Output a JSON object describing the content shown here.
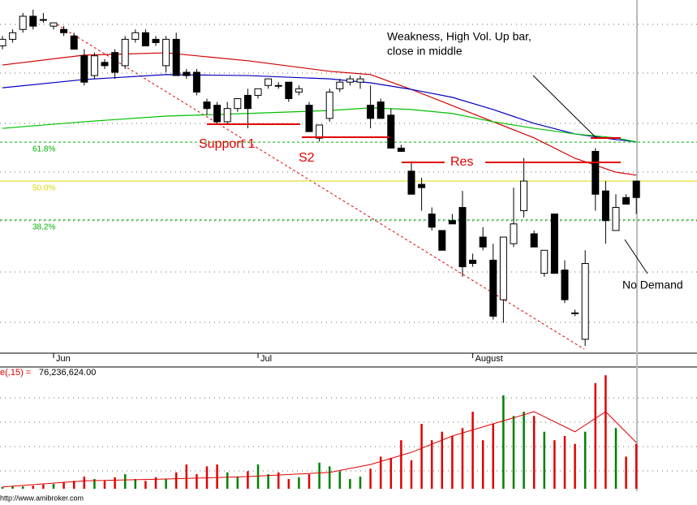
{
  "chart_data": {
    "type": "candlestick",
    "categories": [
      null,
      null,
      null,
      null,
      null,
      "Jun",
      null,
      null,
      null,
      null,
      null,
      null,
      null,
      null,
      null,
      null,
      null,
      null,
      null,
      null,
      null,
      null,
      null,
      null,
      null,
      "Jul",
      null,
      null,
      null,
      null,
      null,
      null,
      null,
      null,
      null,
      null,
      null,
      null,
      null,
      null,
      null,
      null,
      null,
      null,
      null,
      null,
      "August",
      null,
      null,
      null,
      null,
      null,
      null,
      null,
      null,
      null,
      null,
      null,
      null,
      null,
      null,
      null,
      null
    ],
    "ylim": [
      0,
      100
    ],
    "up_color": "#ffffff",
    "down_color": "#000000",
    "open": [
      91,
      93,
      96,
      100,
      99,
      97,
      96,
      94,
      88,
      82,
      86,
      89,
      85,
      93,
      95,
      93,
      85,
      93,
      83,
      83,
      74,
      73,
      68,
      72,
      76,
      76,
      79,
      79,
      80,
      77,
      73,
      63,
      69,
      78,
      80,
      80,
      73,
      74,
      70,
      60,
      53,
      49,
      40,
      35,
      38,
      42,
      26,
      33,
      26,
      14,
      31,
      41,
      34,
      22,
      40,
      23,
      10,
      2,
      59,
      47,
      35,
      45,
      50
    ],
    "high": [
      94,
      96,
      101,
      102,
      101,
      98,
      97,
      95,
      90,
      89,
      87,
      90,
      94,
      96,
      96,
      94,
      94,
      95,
      84,
      84,
      75,
      74,
      74,
      75,
      78,
      78,
      81,
      80,
      80,
      79,
      74,
      67,
      78,
      81,
      82,
      82,
      79,
      75,
      72,
      61,
      56,
      51,
      42,
      35,
      40,
      47,
      28,
      36,
      31,
      33,
      48,
      57,
      35,
      29,
      40,
      26,
      11,
      29,
      60,
      50,
      46,
      46,
      50
    ],
    "low": [
      90,
      92,
      95,
      96,
      98,
      96,
      94,
      90,
      79,
      81,
      84,
      81,
      84,
      92,
      91,
      91,
      83,
      82,
      81,
      76,
      70,
      67,
      67,
      71,
      66,
      75,
      78,
      78,
      74,
      76,
      65,
      62,
      68,
      77,
      79,
      78,
      66,
      69,
      60,
      59,
      46,
      41,
      35,
      29,
      37,
      21,
      24,
      29,
      8,
      7,
      30,
      39,
      30,
      21,
      22,
      13,
      9,
      0,
      41,
      31,
      35,
      43,
      40
    ],
    "close": [
      93,
      95,
      100,
      97,
      99,
      98,
      95,
      90,
      80,
      88,
      85,
      83,
      93,
      95,
      91,
      92,
      93,
      82,
      82,
      77,
      72,
      68,
      72,
      75,
      72,
      78,
      81,
      79,
      75,
      78,
      65,
      67,
      77,
      80,
      81,
      81,
      69,
      69,
      60,
      59,
      46,
      48,
      36,
      29,
      37,
      24,
      25,
      30,
      9,
      33,
      37,
      50,
      30,
      29,
      22,
      14,
      10,
      25,
      46,
      38,
      42,
      43,
      45
    ],
    "moving_averages": [
      {
        "color": "#d00000",
        "x": [
          0,
          8,
          16,
          24,
          32,
          36,
          40,
          44,
          48,
          52,
          56,
          60,
          62
        ],
        "values": [
          85.2,
          88.2,
          88.9,
          86.5,
          83.3,
          82.3,
          77.8,
          72.9,
          68,
          63.1,
          56.9,
          52.7,
          51.8
        ]
      },
      {
        "color": "#0000c0",
        "x": [
          0,
          8,
          16,
          24,
          32,
          36,
          40,
          44,
          48,
          52,
          56,
          60,
          62
        ],
        "values": [
          78.3,
          80.8,
          82.3,
          82,
          81,
          79.8,
          77.8,
          75.4,
          71.7,
          67.5,
          64.3,
          62.6,
          61.9
        ]
      },
      {
        "color": "#00c000",
        "x": [
          0,
          8,
          16,
          24,
          32,
          36,
          40,
          44,
          48,
          52,
          56,
          60,
          62
        ],
        "values": [
          66,
          68,
          69.7,
          70.5,
          71.4,
          72.2,
          71.7,
          70.5,
          68,
          66,
          64.3,
          63.1,
          61.9
        ]
      }
    ],
    "fib_levels": [
      {
        "value": 61.8,
        "label": "61.8%",
        "color": "#00b000"
      },
      {
        "value": 50,
        "label": "50.0%",
        "color": "#d8d800"
      },
      {
        "value": 38.2,
        "label": "38.2%",
        "color": "#00b000"
      }
    ],
    "annotations": [
      "Support 1",
      "S2",
      "Res",
      "Weakness, High Vol. Up bar,",
      "close in middle",
      "No Demand"
    ],
    "volume": {
      "ylim": [
        0,
        190000000
      ],
      "up_color": "#008000",
      "down_color": "#e00000",
      "values": [
        3000000,
        4000000,
        4000000,
        5000000,
        7000000,
        8000000,
        11000000,
        13000000,
        20000000,
        16000000,
        13000000,
        19000000,
        24000000,
        16000000,
        13000000,
        19000000,
        16000000,
        27000000,
        40000000,
        24000000,
        37000000,
        40000000,
        27000000,
        20000000,
        29000000,
        40000000,
        24000000,
        27000000,
        16000000,
        19000000,
        24000000,
        43000000,
        37000000,
        29000000,
        16000000,
        20000000,
        33000000,
        53000000,
        51000000,
        80000000,
        47000000,
        107000000,
        80000000,
        94000000,
        87000000,
        100000000,
        127000000,
        80000000,
        107000000,
        154000000,
        120000000,
        127000000,
        120000000,
        94000000,
        80000000,
        87000000,
        74000000,
        94000000,
        174000000,
        187000000,
        100000000,
        53000000,
        74000000
      ],
      "ma": {
        "color": "#e00000",
        "x": [
          0,
          8,
          16,
          24,
          32,
          36,
          40,
          44,
          48,
          52,
          56,
          59,
          62
        ],
        "values": [
          3000000,
          13000000,
          16000000,
          20000000,
          27000000,
          40000000,
          60000000,
          87000000,
          107000000,
          127000000,
          94000000,
          127000000,
          76236624
        ]
      },
      "label": "e(,15) =",
      "value": 76236624,
      "value_label": "76,236,624.00"
    },
    "footer": "http://www.amibroker.com"
  }
}
